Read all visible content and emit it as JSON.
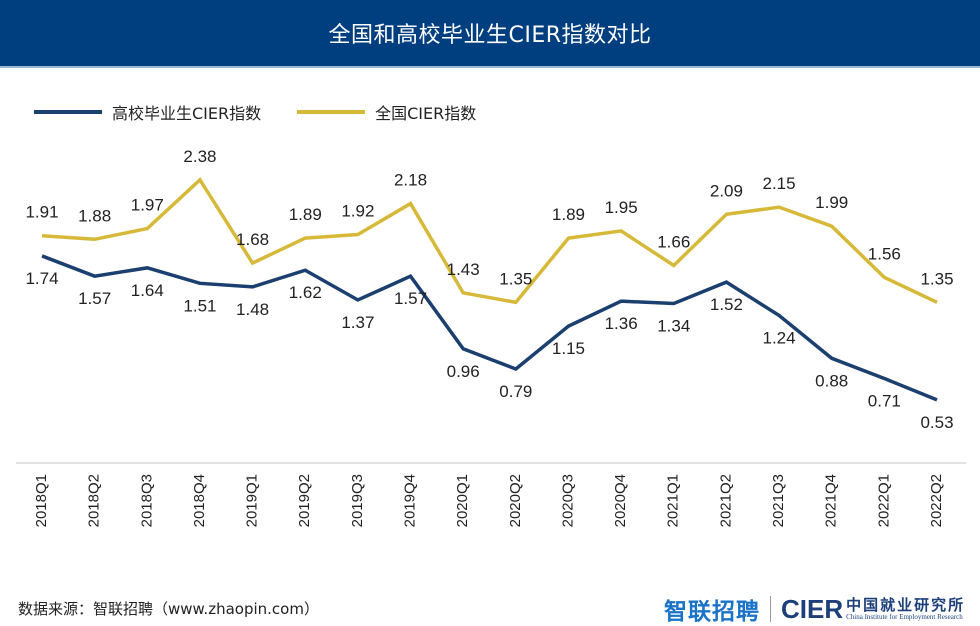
{
  "header": {
    "title": "全国和高校毕业生CIER指数对比"
  },
  "footer": {
    "source": "数据来源：智联招聘（www.zhaopin.com）",
    "logo_zhaopin": "智联招聘",
    "logo_cier": "CIER",
    "logo_cier_cn": "中国就业研究所",
    "logo_cier_en": "China Institute for Employment Research"
  },
  "chart_data": {
    "type": "line",
    "title": "全国和高校毕业生CIER指数对比",
    "xlabel": "",
    "ylabel": "",
    "ylim": [
      0,
      2.6
    ],
    "grid": false,
    "legend_position": "top-left",
    "categories": [
      "2018Q1",
      "2018Q2",
      "2018Q3",
      "2018Q4",
      "2019Q1",
      "2019Q2",
      "2019Q3",
      "2019Q4",
      "2020Q1",
      "2020Q2",
      "2020Q3",
      "2020Q4",
      "2021Q1",
      "2021Q2",
      "2021Q3",
      "2021Q4",
      "2022Q1",
      "2022Q2"
    ],
    "series": [
      {
        "name": "高校毕业生CIER指数",
        "color": "#1b3f6e",
        "label_position": "below",
        "values": [
          1.74,
          1.57,
          1.64,
          1.51,
          1.48,
          1.62,
          1.37,
          1.57,
          0.96,
          0.79,
          1.15,
          1.36,
          1.34,
          1.52,
          1.24,
          0.88,
          0.71,
          0.53
        ]
      },
      {
        "name": "全国CIER指数",
        "color": "#d7b93a",
        "label_position": "above",
        "values": [
          1.91,
          1.88,
          1.97,
          2.38,
          1.68,
          1.89,
          1.92,
          2.18,
          1.43,
          1.35,
          1.89,
          1.95,
          1.66,
          2.09,
          2.15,
          1.99,
          1.56,
          1.35
        ]
      }
    ]
  }
}
